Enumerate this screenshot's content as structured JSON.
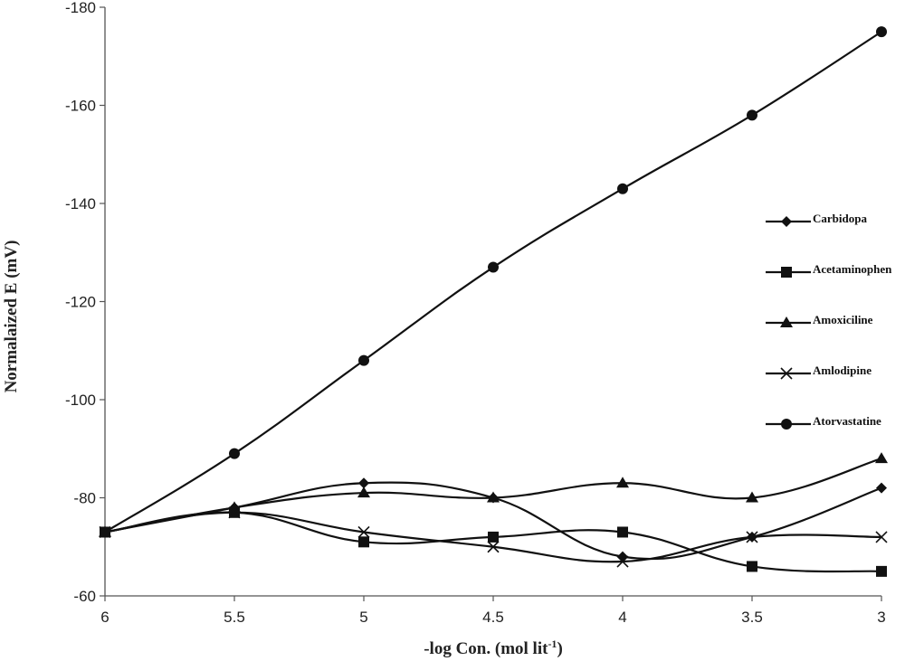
{
  "chart_data": {
    "type": "line",
    "title": "",
    "xlabel": "-log Con. (mol lit",
    "xlabel_sup": "-1",
    "xlabel_close": ")",
    "ylabel": "Normalaized E (mV)",
    "x": [
      6,
      5.5,
      5,
      4.5,
      4,
      3.5,
      3
    ],
    "x_ticks": [
      "6",
      "5.5",
      "5",
      "4.5",
      "4",
      "3.5",
      "3"
    ],
    "xlim": [
      6,
      3
    ],
    "ylim": [
      -60,
      -180
    ],
    "y_ticks": [
      "-60",
      "-80",
      "-100",
      "-120",
      "-140",
      "-160",
      "-180"
    ],
    "y_tick_values": [
      -60,
      -80,
      -100,
      -120,
      -140,
      -160,
      -180
    ],
    "grid": false,
    "legend_position": "right",
    "series": [
      {
        "name": "Carbidopa",
        "marker": "diamond",
        "values": [
          -73,
          -78,
          -83,
          -80,
          -68,
          -72,
          -82
        ]
      },
      {
        "name": "Acetaminophen",
        "marker": "square",
        "values": [
          -73,
          -77,
          -71,
          -72,
          -73,
          -66,
          -65
        ]
      },
      {
        "name": "Amoxiciline",
        "marker": "triangle",
        "values": [
          -73,
          -78,
          -81,
          -80,
          -83,
          -80,
          -88
        ]
      },
      {
        "name": "Amlodipine",
        "marker": "x",
        "values": [
          -73,
          -77,
          -73,
          -70,
          -67,
          -72,
          -72
        ]
      },
      {
        "name": "Atorvastatine",
        "marker": "circle",
        "values": [
          -73,
          -89,
          -108,
          -127,
          -143,
          -158,
          -175
        ]
      }
    ],
    "line_color": "#111111"
  }
}
